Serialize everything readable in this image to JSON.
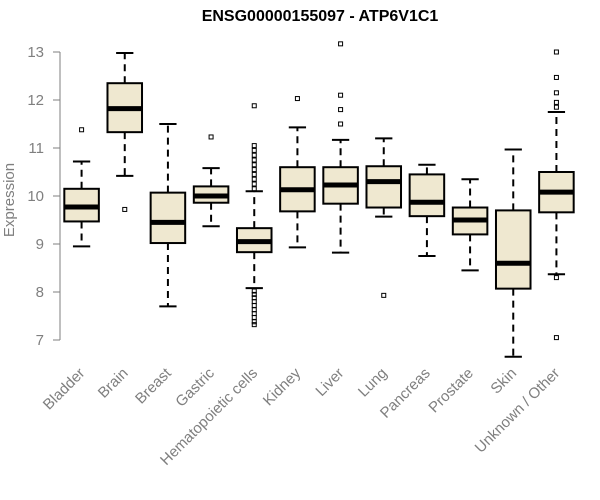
{
  "chart_data": {
    "type": "box",
    "title": "ENSG00000155097 - ATP6V1C1",
    "xlabel": "",
    "ylabel": "Expression",
    "ylim": [
      6.7,
      13.3
    ],
    "yticks": [
      7,
      8,
      9,
      10,
      11,
      12,
      13
    ],
    "grid": false,
    "box_fill": "#efe8d0",
    "categories": [
      "Bladder",
      "Brain",
      "Breast",
      "Gastric",
      "Hematopoietic cells",
      "Kidney",
      "Liver",
      "Lung",
      "Pancreas",
      "Prostate",
      "Skin",
      "Unknown / Other"
    ],
    "boxes": [
      {
        "whisker_low": 8.95,
        "q1": 9.47,
        "median": 9.77,
        "q3": 10.15,
        "whisker_high": 10.72,
        "outliers": [
          11.38
        ]
      },
      {
        "whisker_low": 10.42,
        "q1": 11.33,
        "median": 11.82,
        "q3": 12.35,
        "whisker_high": 12.98,
        "outliers": [
          9.72
        ]
      },
      {
        "whisker_low": 7.7,
        "q1": 9.02,
        "median": 9.45,
        "q3": 10.07,
        "whisker_high": 11.5,
        "outliers": []
      },
      {
        "whisker_low": 9.37,
        "q1": 9.86,
        "median": 10.0,
        "q3": 10.2,
        "whisker_high": 10.58,
        "outliers": [
          11.23
        ]
      },
      {
        "whisker_low": 8.08,
        "q1": 8.83,
        "median": 9.05,
        "q3": 9.33,
        "whisker_high": 10.1,
        "outliers": [
          11.88,
          11.05,
          10.95,
          10.85,
          10.75,
          10.65,
          10.55,
          10.45,
          10.35,
          10.25,
          10.15,
          8.02,
          7.95,
          7.88,
          7.8,
          7.72,
          7.63,
          7.55,
          7.47,
          7.38,
          7.32
        ]
      },
      {
        "whisker_low": 8.93,
        "q1": 9.68,
        "median": 10.13,
        "q3": 10.6,
        "whisker_high": 11.43,
        "outliers": [
          12.03
        ]
      },
      {
        "whisker_low": 8.82,
        "q1": 9.84,
        "median": 10.23,
        "q3": 10.6,
        "whisker_high": 11.17,
        "outliers": [
          13.17,
          12.1,
          11.8,
          11.5
        ]
      },
      {
        "whisker_low": 9.57,
        "q1": 9.76,
        "median": 10.3,
        "q3": 10.62,
        "whisker_high": 11.2,
        "outliers": [
          7.93
        ]
      },
      {
        "whisker_low": 8.75,
        "q1": 9.58,
        "median": 9.87,
        "q3": 10.45,
        "whisker_high": 10.65,
        "outliers": []
      },
      {
        "whisker_low": 8.45,
        "q1": 9.2,
        "median": 9.5,
        "q3": 9.76,
        "whisker_high": 10.35,
        "outliers": []
      },
      {
        "whisker_low": 6.65,
        "q1": 8.07,
        "median": 8.6,
        "q3": 9.7,
        "whisker_high": 10.97,
        "outliers": []
      },
      {
        "whisker_low": 8.37,
        "q1": 9.66,
        "median": 10.08,
        "q3": 10.5,
        "whisker_high": 11.75,
        "outliers": [
          13.0,
          12.47,
          12.15,
          11.95,
          11.85,
          8.3,
          7.05
        ]
      }
    ]
  }
}
